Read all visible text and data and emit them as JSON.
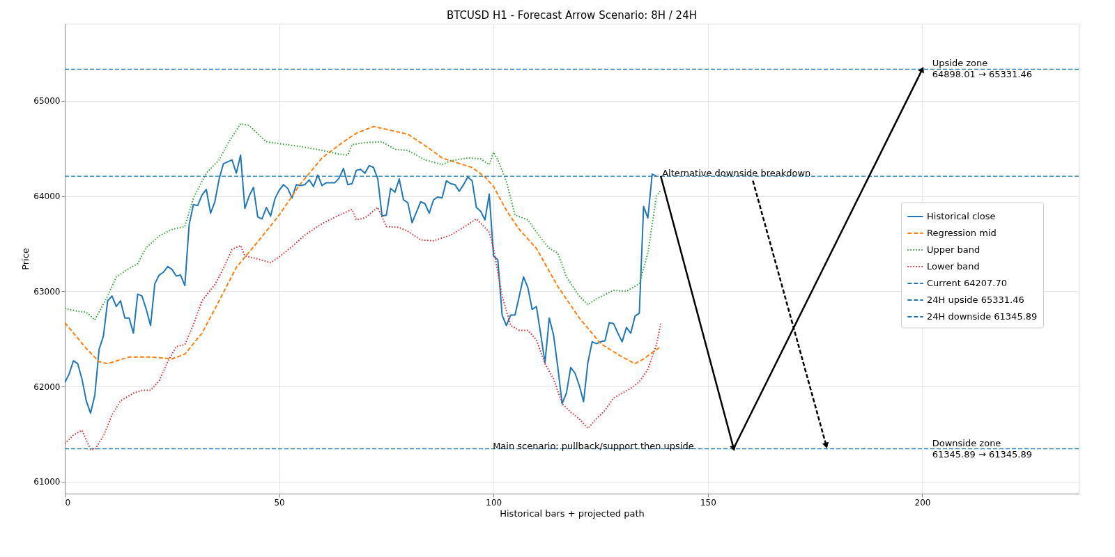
{
  "chart_data": {
    "type": "line",
    "title": "BTCUSD H1 - Forecast Arrow Scenario: 8H / 24H",
    "xlabel": "Historical bars + projected path",
    "ylabel": "Price",
    "xlim": [
      0,
      236.5
    ],
    "ylim": [
      60875,
      65810
    ],
    "xticks": [
      0,
      50,
      100,
      150,
      200
    ],
    "yticks": [
      61000,
      62000,
      63000,
      64000,
      65000
    ],
    "grid": true,
    "legend": "right",
    "series": [
      {
        "name": "Historical close",
        "color": "#1f77b4",
        "line_style": "solid",
        "x": [
          0,
          1,
          2,
          3,
          4,
          5,
          6,
          7,
          8,
          9,
          10,
          11,
          12,
          13,
          14,
          15,
          16,
          17,
          18,
          19,
          20,
          21,
          22,
          23,
          24,
          25,
          26,
          27,
          28,
          29,
          30,
          31,
          32,
          33,
          34,
          35,
          36,
          37,
          38,
          39,
          40,
          41,
          42,
          43,
          44,
          45,
          46,
          47,
          48,
          49,
          50,
          51,
          52,
          53,
          54,
          55,
          56,
          57,
          58,
          59,
          60,
          61,
          62,
          63,
          64,
          65,
          66,
          67,
          68,
          69,
          70,
          71,
          72,
          73,
          74,
          75,
          76,
          77,
          78,
          79,
          80,
          81,
          82,
          83,
          84,
          85,
          86,
          87,
          88,
          89,
          90,
          91,
          92,
          93,
          94,
          95,
          96,
          97,
          98,
          99,
          100,
          101,
          102,
          103,
          104,
          105,
          106,
          107,
          108,
          109,
          110,
          111,
          112,
          113,
          114,
          115,
          116,
          117,
          118,
          119,
          120,
          121,
          122,
          123,
          124,
          125,
          126,
          127,
          128,
          129,
          130,
          131,
          132,
          133,
          134,
          135,
          136,
          137,
          138
        ],
        "values": [
          62040,
          62130,
          62270,
          62240,
          62080,
          61850,
          61720,
          61910,
          62390,
          62530,
          62900,
          62950,
          62840,
          62900,
          62720,
          62720,
          62560,
          62970,
          62950,
          62810,
          62640,
          63080,
          63170,
          63200,
          63260,
          63230,
          63160,
          63170,
          63060,
          63700,
          63910,
          63900,
          64010,
          64070,
          63820,
          63940,
          64180,
          64340,
          64360,
          64380,
          64240,
          64430,
          63870,
          64000,
          64090,
          63780,
          63760,
          63880,
          63790,
          63970,
          64060,
          64120,
          64080,
          63980,
          64120,
          64110,
          64120,
          64170,
          64100,
          64220,
          64110,
          64140,
          64140,
          64140,
          64190,
          64290,
          64120,
          64130,
          64270,
          64280,
          64240,
          64320,
          64300,
          64180,
          63790,
          63800,
          64080,
          64040,
          64180,
          63960,
          63930,
          63720,
          63830,
          63940,
          63920,
          63820,
          63960,
          63990,
          63980,
          64160,
          64130,
          64120,
          64050,
          64120,
          64200,
          64160,
          63880,
          63840,
          63750,
          64020,
          63370,
          63330,
          62750,
          62640,
          62750,
          62750,
          62950,
          63150,
          63040,
          62810,
          62840,
          62550,
          62250,
          62720,
          62540,
          62200,
          61820,
          61930,
          62200,
          62140,
          62010,
          61840,
          62250,
          62470,
          62450,
          62470,
          62480,
          62670,
          62660,
          62560,
          62470,
          62620,
          62560,
          62740,
          62770,
          63890,
          63770,
          64230,
          64210
        ]
      },
      {
        "name": "Regression mid",
        "color": "#ff7f0e",
        "line_style": "dashed",
        "x": [
          0,
          5,
          8,
          10,
          15,
          20,
          25,
          28,
          32,
          36,
          40,
          45,
          50,
          55,
          60,
          65,
          68,
          72,
          75,
          80,
          85,
          88,
          90,
          95,
          98,
          100,
          103,
          106,
          110,
          115,
          120,
          125,
          130,
          133,
          135,
          139
        ],
        "values": [
          62670,
          62400,
          62260,
          62240,
          62310,
          62310,
          62290,
          62340,
          62560,
          62900,
          63250,
          63520,
          63800,
          64130,
          64400,
          64570,
          64660,
          64730,
          64700,
          64650,
          64500,
          64400,
          64370,
          64300,
          64200,
          64100,
          63850,
          63650,
          63450,
          63050,
          62720,
          62450,
          62310,
          62240,
          62290,
          62420
        ]
      },
      {
        "name": "Upper band",
        "color": "#2ca02c",
        "line_style": "dotted",
        "x": [
          0,
          3,
          5,
          7,
          10,
          12,
          15,
          17,
          19,
          22,
          25,
          28,
          30,
          33,
          36,
          38,
          41,
          43,
          47,
          50,
          55,
          60,
          64,
          66,
          67,
          70,
          74,
          77,
          80,
          84,
          88,
          90,
          94,
          97,
          99,
          100,
          101,
          103,
          105,
          108,
          111,
          113,
          115,
          117,
          120,
          122,
          124,
          128,
          131,
          134,
          136,
          138,
          139
        ],
        "values": [
          62820,
          62790,
          62780,
          62700,
          62950,
          63150,
          63240,
          63290,
          63460,
          63580,
          63650,
          63680,
          63980,
          64240,
          64380,
          64550,
          64760,
          64740,
          64570,
          64550,
          64520,
          64480,
          64440,
          64430,
          64540,
          64560,
          64570,
          64490,
          64480,
          64380,
          64330,
          64370,
          64400,
          64390,
          64330,
          64460,
          64380,
          64150,
          63800,
          63750,
          63560,
          63450,
          63400,
          63150,
          62950,
          62860,
          62920,
          63010,
          63000,
          63080,
          63400,
          64000,
          64060
        ]
      },
      {
        "name": "Lower band",
        "color": "#d62728",
        "line_style": "dotted",
        "x": [
          0,
          2,
          4,
          5,
          6,
          7,
          9,
          11,
          13,
          16,
          18,
          20,
          22,
          24,
          26,
          28,
          30,
          32,
          35,
          37,
          39,
          41,
          42,
          45,
          48,
          50,
          53,
          56,
          60,
          64,
          67,
          68,
          70,
          73,
          75,
          78,
          80,
          83,
          86,
          90,
          93,
          96,
          99,
          100,
          102,
          104,
          106,
          108,
          110,
          112,
          114,
          116,
          118,
          120,
          122,
          124,
          126,
          128,
          130,
          132,
          134,
          136,
          138,
          139
        ],
        "values": [
          61400,
          61490,
          61540,
          61440,
          61340,
          61340,
          61480,
          61700,
          61850,
          61930,
          61960,
          61960,
          62060,
          62260,
          62420,
          62440,
          62650,
          62900,
          63070,
          63240,
          63440,
          63480,
          63370,
          63340,
          63300,
          63360,
          63470,
          63590,
          63710,
          63800,
          63860,
          63750,
          63770,
          63880,
          63680,
          63670,
          63630,
          63540,
          63530,
          63590,
          63670,
          63760,
          63620,
          63450,
          62950,
          62640,
          62590,
          62590,
          62490,
          62240,
          62080,
          61820,
          61730,
          61660,
          61560,
          61660,
          61750,
          61880,
          61930,
          61980,
          62050,
          62180,
          62440,
          62660
        ]
      },
      {
        "color": "#000000",
        "line_style": "solid",
        "marker": "triangle",
        "x": [
          139,
          156
        ],
        "values": [
          64210,
          61350
        ]
      },
      {
        "color": "#000000",
        "line_style": "solid",
        "marker": "triangle",
        "x": [
          156,
          200
        ],
        "values": [
          61350,
          65330
        ]
      },
      {
        "color": "#000000",
        "line_style": "dashed",
        "marker": "triangle",
        "x": [
          160.5,
          177.6
        ],
        "values": [
          64160,
          61380
        ]
      }
    ],
    "ref_lines": [
      {
        "axis": "y",
        "value": 64207.7,
        "label": "Current 64207.70",
        "color": "#1f77b4",
        "line_style": "dashed"
      },
      {
        "axis": "y",
        "value": 65331.46,
        "label": "24H upside 65331.46",
        "color": "#1f77b4",
        "line_style": "dashed"
      },
      {
        "axis": "y",
        "value": 61345.89,
        "label": "24H downside 61345.89",
        "color": "#1f77b4",
        "line_style": "dashed"
      }
    ],
    "annotations": [
      {
        "text": "Upside zone\n64898.01 → 65331.46",
        "x": 202,
        "y": 65331.46
      },
      {
        "text": "Downside zone\n61345.89 → 61345.89",
        "x": 202,
        "y": 61345.89
      },
      {
        "text": "Alternative downside breakdown",
        "x": 139,
        "y": 64207.7
      },
      {
        "text": "Main scenario: pullback/support then upside",
        "x": 99.5,
        "y": 61345.89
      }
    ]
  }
}
